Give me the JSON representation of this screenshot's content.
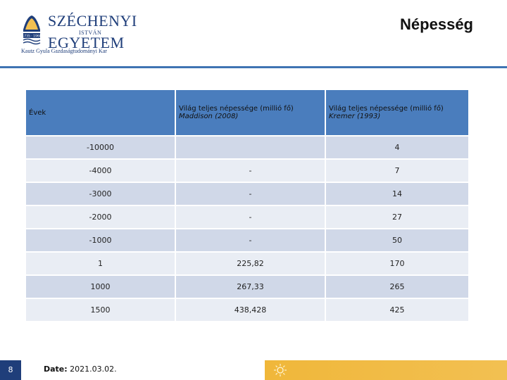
{
  "header": {
    "logo": {
      "line1": "SZÉCHENYI",
      "line2": "ISTVÁN",
      "line3": "EGYETEM",
      "line4": "Kautz Gyula Gazdaságtudományi Kar"
    },
    "title": "Népesség"
  },
  "table": {
    "headers": {
      "years": "Évek",
      "maddison_label": "Világ teljes népessége (millió fő)",
      "maddison_source": "Maddison (2008)",
      "kremer_label": "Világ teljes népessége (millió fő)",
      "kremer_source": "Kremer (1993)"
    },
    "rows": [
      {
        "year": "-10000",
        "maddison": "",
        "kremer": "4"
      },
      {
        "year": "-4000",
        "maddison": "-",
        "kremer": "7"
      },
      {
        "year": "-3000",
        "maddison": "-",
        "kremer": "14"
      },
      {
        "year": "-2000",
        "maddison": "-",
        "kremer": "27"
      },
      {
        "year": "-1000",
        "maddison": "-",
        "kremer": "50"
      },
      {
        "year": "1",
        "maddison": "225,82",
        "kremer": "170"
      },
      {
        "year": "1000",
        "maddison": "267,33",
        "kremer": "265"
      },
      {
        "year": "1500",
        "maddison": "438,428",
        "kremer": "425"
      }
    ]
  },
  "footer": {
    "page_number": "8",
    "date_label": "Date:",
    "date_value": "2021.03.02."
  },
  "colors": {
    "brand_blue": "#1f3e7a",
    "header_blue": "#4a7dbd",
    "footer_gold": "#f0b73a"
  }
}
